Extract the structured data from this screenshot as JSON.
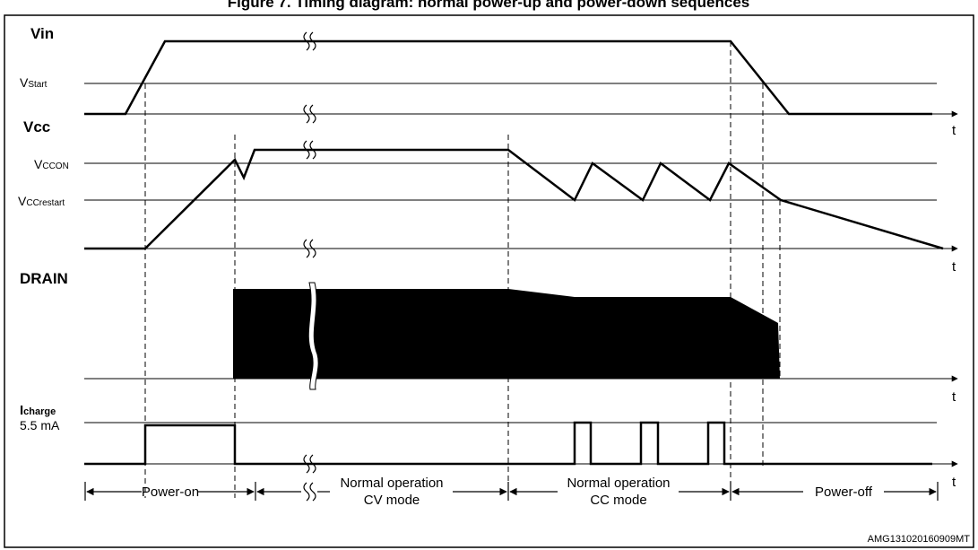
{
  "title": "Figure 7. Timing diagram: normal power-up and power-down sequences",
  "doc_code": "AMG131020160909MT",
  "signals": {
    "vin": {
      "label": "Vin",
      "thresholds": [
        {
          "main": "V",
          "sub": "Start"
        }
      ]
    },
    "vcc": {
      "label": "Vcc",
      "thresholds": [
        {
          "main": "V",
          "sub": "CCON"
        },
        {
          "main": "V",
          "sub": "CCrestart"
        }
      ]
    },
    "drain": {
      "label": "DRAIN"
    },
    "icharge": {
      "label_main": "I",
      "label_sub": "charge",
      "level": "5.5 mA"
    }
  },
  "time_label": "t",
  "phases": [
    {
      "line1": "Power-on",
      "line2": ""
    },
    {
      "line1": "Normal operation",
      "line2": "CV mode"
    },
    {
      "line1": "Normal operation",
      "line2": "CC mode"
    },
    {
      "line1": "Power-off",
      "line2": ""
    }
  ]
}
